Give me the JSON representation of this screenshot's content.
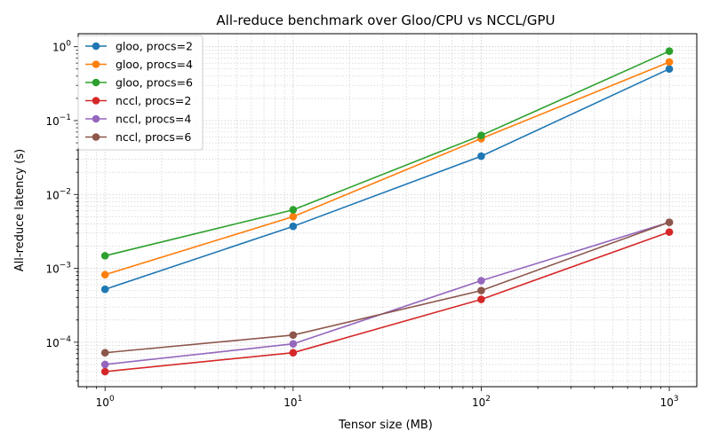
{
  "chart_data": {
    "type": "line",
    "title": "All-reduce benchmark over Gloo/CPU vs NCCL/GPU",
    "xlabel": "Tensor size (MB)",
    "ylabel": "All-reduce latency (s)",
    "xscale": "log",
    "yscale": "log",
    "xlim": [
      0.72,
      1400
    ],
    "ylim": [
      2.5e-05,
      1.5
    ],
    "x": [
      1,
      10,
      100,
      1000
    ],
    "xticks": [
      {
        "value": 1,
        "base": "10",
        "exp": "0"
      },
      {
        "value": 10,
        "base": "10",
        "exp": "1"
      },
      {
        "value": 100,
        "base": "10",
        "exp": "2"
      },
      {
        "value": 1000,
        "base": "10",
        "exp": "3"
      }
    ],
    "yticks": [
      {
        "value": 0.0001,
        "base": "10",
        "exp": "−4"
      },
      {
        "value": 0.001,
        "base": "10",
        "exp": "−3"
      },
      {
        "value": 0.01,
        "base": "10",
        "exp": "−2"
      },
      {
        "value": 0.1,
        "base": "10",
        "exp": "−1"
      },
      {
        "value": 1,
        "base": "10",
        "exp": "0"
      }
    ],
    "grid": "major and minor, dotted",
    "legend_position": "top-left",
    "series": [
      {
        "name": "gloo, procs=2",
        "color": "#1f77b4",
        "values": [
          0.00052,
          0.0037,
          0.033,
          0.5
        ]
      },
      {
        "name": "gloo, procs=4",
        "color": "#ff7f0e",
        "values": [
          0.00082,
          0.005,
          0.057,
          0.62
        ]
      },
      {
        "name": "gloo, procs=6",
        "color": "#2ca02c",
        "values": [
          0.00148,
          0.0062,
          0.063,
          0.87
        ]
      },
      {
        "name": "nccl, procs=2",
        "color": "#d62728",
        "values": [
          4e-05,
          7.2e-05,
          0.00038,
          0.0031
        ]
      },
      {
        "name": "nccl, procs=4",
        "color": "#9467bd",
        "values": [
          5e-05,
          9.5e-05,
          0.00068,
          0.0042
        ]
      },
      {
        "name": "nccl, procs=6",
        "color": "#8c564b",
        "values": [
          7.2e-05,
          0.000125,
          0.0005,
          0.0042
        ]
      }
    ]
  }
}
